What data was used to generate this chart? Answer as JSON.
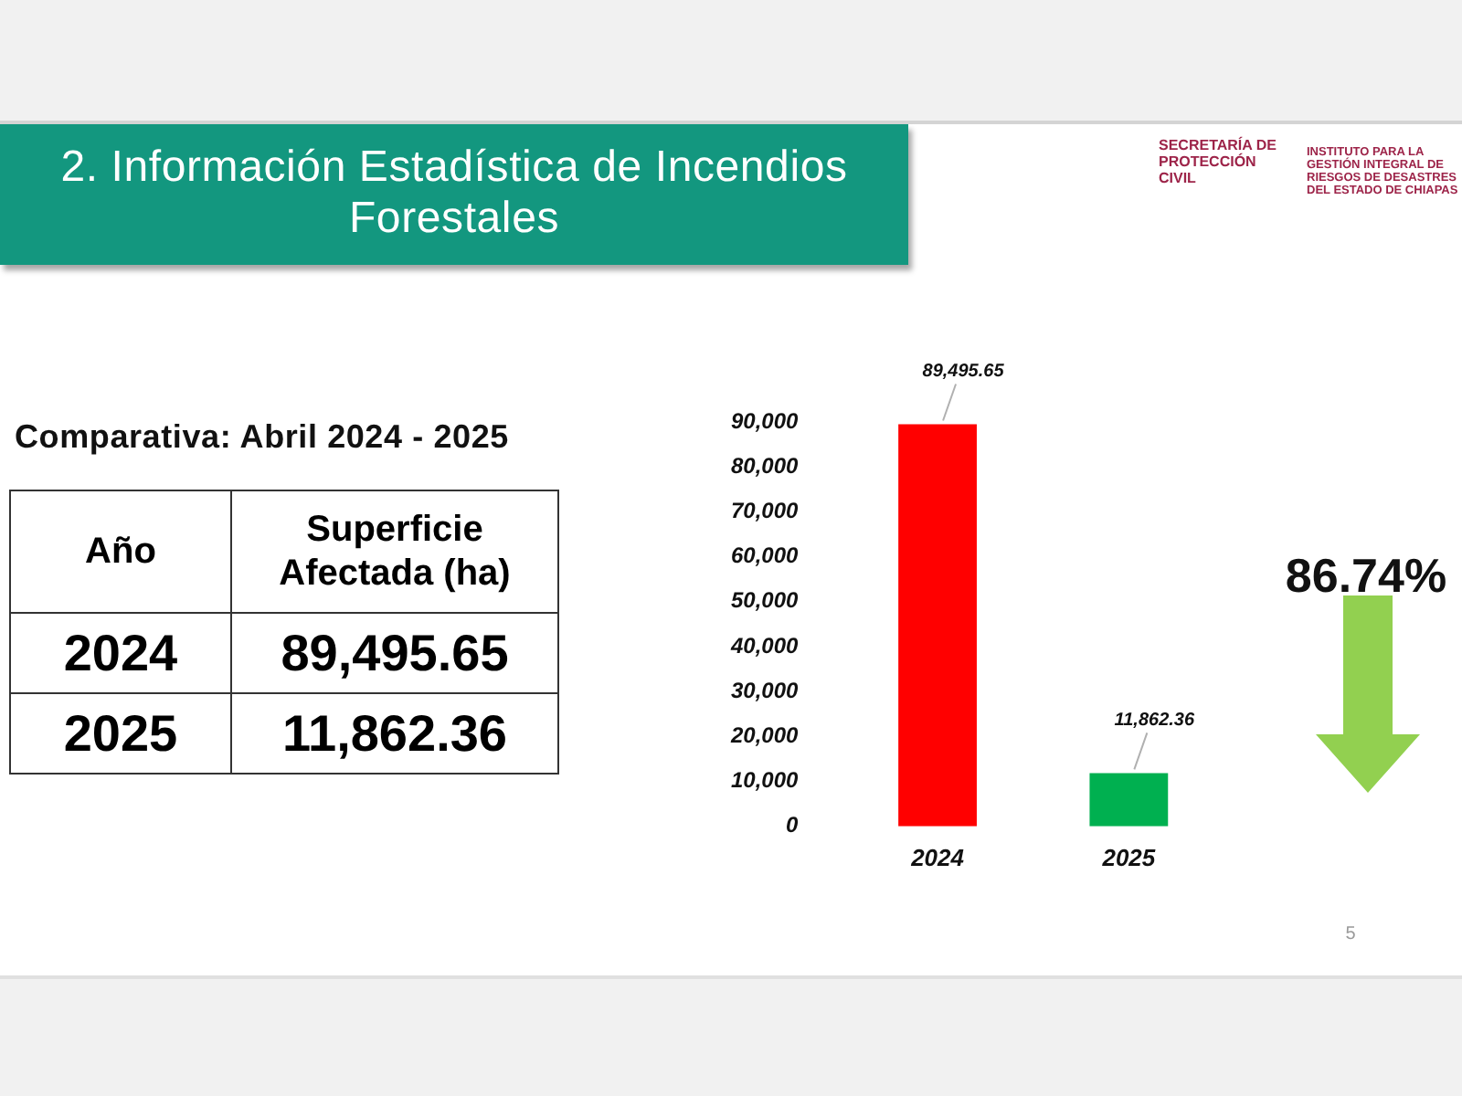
{
  "chart_data": {
    "type": "bar",
    "title": "2. Información Estadística de Incendios Forestales",
    "subtitle": "Comparativa: Abril 2024 - 2025",
    "categories": [
      "2024",
      "2025"
    ],
    "values": [
      89495.65,
      11862.36
    ],
    "value_labels": [
      "89,495.65",
      "11,862.36"
    ],
    "colors": [
      "#ff0000",
      "#00b050"
    ],
    "ylim": [
      0,
      90000
    ],
    "yticks": [
      0,
      {
        "value": 10000,
        "label": "10,000"
      },
      {
        "value": 20000,
        "label": "20,000"
      },
      {
        "value": 30000,
        "label": "30,000"
      },
      {
        "value": 40000,
        "label": "40,000"
      },
      {
        "value": 50000,
        "label": "50,000"
      },
      {
        "value": 60000,
        "label": "60,000"
      },
      {
        "value": 70000,
        "label": "70,000"
      },
      {
        "value": 80000,
        "label": "80,000"
      },
      {
        "value": 90000,
        "label": "90,000"
      }
    ],
    "annotations": [
      "Año",
      "Superficie Afectada (ha)",
      "86.74%",
      "5",
      "SECRETARÍA DE PROTECCIÓN CIVIL",
      "INSTITUTO PARA LA GESTIÓN INTEGRAL DE RIESGOS DE DESASTRES DEL ESTADO DE CHIAPAS"
    ]
  }
}
